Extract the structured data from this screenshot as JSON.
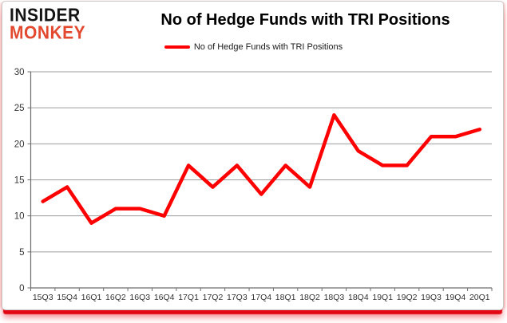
{
  "logo": {
    "line1": "INSIDER",
    "line2": "MONKEY"
  },
  "header": {
    "title": "No of Hedge Funds with TRI Positions"
  },
  "legend": {
    "label": "No of Hedge Funds with TRI Positions",
    "color": "#fe0000"
  },
  "colors": {
    "series_red": "#fe0000",
    "shadow_red": "#e30613",
    "logo_black": "#141414",
    "logo_red": "#e2492f",
    "grid": "#9d9d9d",
    "axis": "#6e6e6e",
    "label": "#333333"
  },
  "chart_data": {
    "type": "line",
    "title": "No of Hedge Funds with TRI Positions",
    "categories": [
      "15Q3",
      "15Q4",
      "16Q1",
      "16Q2",
      "16Q3",
      "16Q4",
      "17Q1",
      "17Q2",
      "17Q3",
      "17Q4",
      "18Q1",
      "18Q2",
      "18Q3",
      "18Q4",
      "19Q1",
      "19Q2",
      "19Q3",
      "19Q4",
      "20Q1"
    ],
    "series": [
      {
        "name": "No of Hedge Funds with TRI Positions",
        "color": "#fe0000",
        "values": [
          12,
          14,
          9,
          11,
          11,
          10,
          17,
          14,
          17,
          13,
          17,
          14,
          24,
          19,
          17,
          17,
          21,
          21,
          22
        ]
      }
    ],
    "xlabel": "",
    "ylabel": "",
    "ylim": [
      0,
      30
    ],
    "yticks": [
      0,
      5,
      10,
      15,
      20,
      25,
      30
    ],
    "grid": true,
    "legend_position": "top"
  }
}
